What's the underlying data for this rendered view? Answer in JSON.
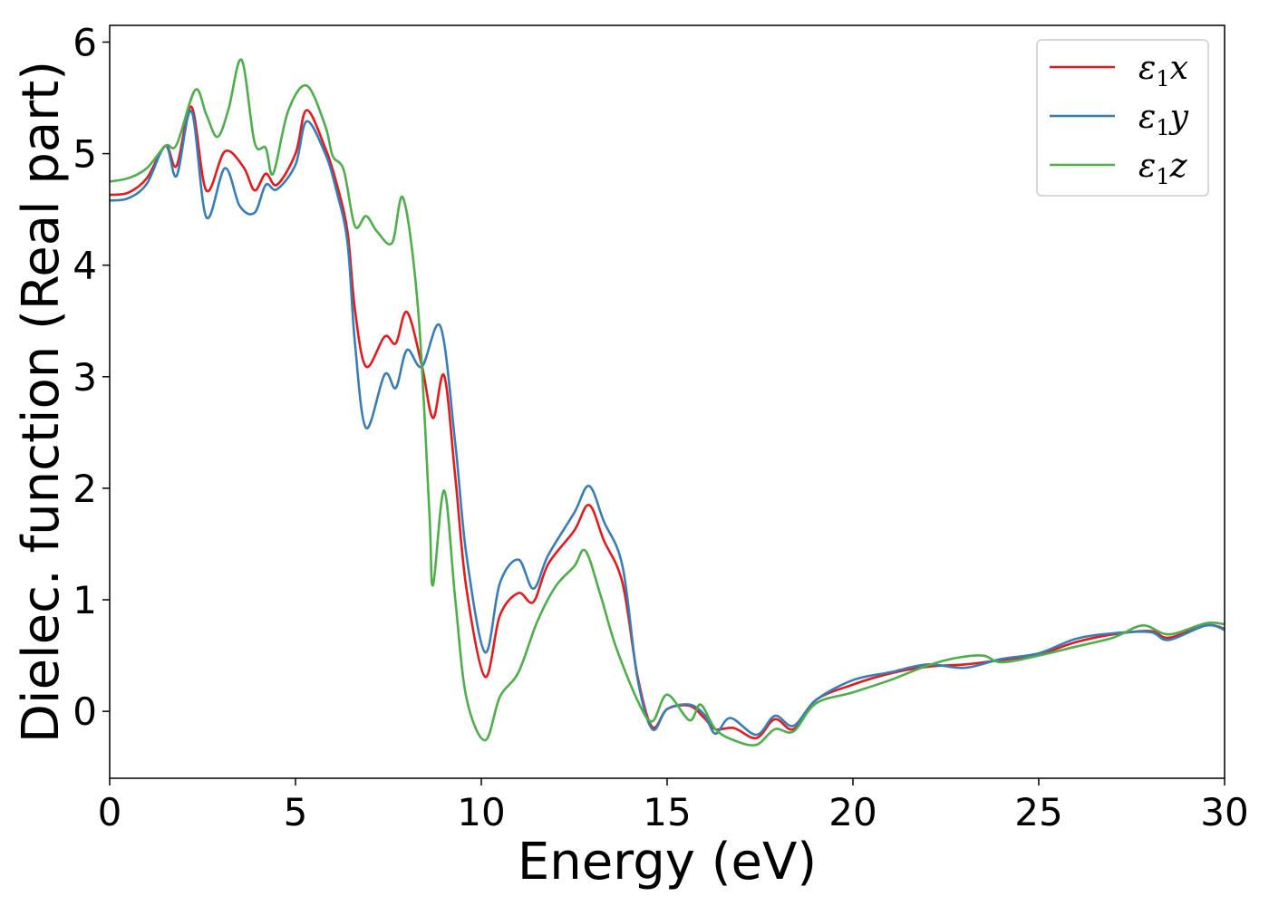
{
  "chart_data": {
    "type": "line",
    "title": "",
    "xlabel": "Energy (eV)",
    "ylabel": "Dielec. function (Real part)",
    "xlim": [
      0,
      30
    ],
    "ylim": [
      -0.6,
      6.15
    ],
    "xticks": [
      0,
      5,
      10,
      15,
      20,
      25,
      30
    ],
    "yticks": [
      0,
      1,
      2,
      3,
      4,
      5,
      6
    ],
    "grid": false,
    "legend_position": "top-right",
    "series": [
      {
        "name": "ε₁x",
        "legend": {
          "symbol": "ε",
          "sub": "1",
          "suffix": "x"
        },
        "color": "#e41a1c",
        "points": [
          [
            0,
            4.63
          ],
          [
            0.5,
            4.65
          ],
          [
            1,
            4.78
          ],
          [
            1.5,
            5.07
          ],
          [
            1.8,
            4.89
          ],
          [
            2.2,
            5.42
          ],
          [
            2.6,
            4.67
          ],
          [
            3.1,
            5.02
          ],
          [
            3.6,
            4.88
          ],
          [
            3.9,
            4.67
          ],
          [
            4.2,
            4.82
          ],
          [
            4.5,
            4.72
          ],
          [
            5.0,
            5.0
          ],
          [
            5.3,
            5.39
          ],
          [
            5.8,
            5.05
          ],
          [
            6.1,
            4.74
          ],
          [
            6.4,
            4.3
          ],
          [
            6.6,
            3.6
          ],
          [
            6.9,
            3.09
          ],
          [
            7.4,
            3.36
          ],
          [
            7.7,
            3.3
          ],
          [
            8.0,
            3.58
          ],
          [
            8.4,
            3.1
          ],
          [
            8.7,
            2.63
          ],
          [
            9.0,
            3.01
          ],
          [
            9.3,
            2.1
          ],
          [
            9.6,
            1.1
          ],
          [
            10.1,
            0.31
          ],
          [
            10.5,
            0.86
          ],
          [
            11.0,
            1.06
          ],
          [
            11.4,
            0.98
          ],
          [
            11.8,
            1.32
          ],
          [
            12.5,
            1.62
          ],
          [
            12.9,
            1.85
          ],
          [
            13.3,
            1.53
          ],
          [
            13.8,
            1.15
          ],
          [
            14.2,
            0.32
          ],
          [
            14.6,
            -0.14
          ],
          [
            15.0,
            0.02
          ],
          [
            15.6,
            0.05
          ],
          [
            16.0,
            -0.06
          ],
          [
            16.3,
            -0.16
          ],
          [
            16.8,
            -0.15
          ],
          [
            17.4,
            -0.24
          ],
          [
            17.9,
            -0.07
          ],
          [
            18.4,
            -0.16
          ],
          [
            19.0,
            0.1
          ],
          [
            20.0,
            0.24
          ],
          [
            21.0,
            0.34
          ],
          [
            22.0,
            0.4
          ],
          [
            23.0,
            0.42
          ],
          [
            24.0,
            0.46
          ],
          [
            25.0,
            0.51
          ],
          [
            26.0,
            0.62
          ],
          [
            27.0,
            0.69
          ],
          [
            28.0,
            0.72
          ],
          [
            28.5,
            0.66
          ],
          [
            29.5,
            0.77
          ],
          [
            30,
            0.74
          ]
        ]
      },
      {
        "name": "ε₁y",
        "legend": {
          "symbol": "ε",
          "sub": "1",
          "suffix": "y"
        },
        "color": "#377eb8",
        "points": [
          [
            0,
            4.58
          ],
          [
            0.5,
            4.6
          ],
          [
            1,
            4.73
          ],
          [
            1.5,
            5.07
          ],
          [
            1.8,
            4.8
          ],
          [
            2.2,
            5.38
          ],
          [
            2.6,
            4.43
          ],
          [
            3.1,
            4.87
          ],
          [
            3.5,
            4.53
          ],
          [
            3.9,
            4.47
          ],
          [
            4.2,
            4.72
          ],
          [
            4.5,
            4.68
          ],
          [
            5.0,
            4.9
          ],
          [
            5.3,
            5.29
          ],
          [
            5.8,
            5.0
          ],
          [
            6.1,
            4.67
          ],
          [
            6.4,
            4.2
          ],
          [
            6.6,
            3.3
          ],
          [
            6.9,
            2.54
          ],
          [
            7.4,
            3.02
          ],
          [
            7.7,
            2.9
          ],
          [
            8.0,
            3.24
          ],
          [
            8.4,
            3.09
          ],
          [
            8.9,
            3.45
          ],
          [
            9.3,
            2.4
          ],
          [
            9.6,
            1.4
          ],
          [
            10.1,
            0.53
          ],
          [
            10.5,
            1.15
          ],
          [
            11.0,
            1.36
          ],
          [
            11.4,
            1.1
          ],
          [
            11.8,
            1.4
          ],
          [
            12.5,
            1.78
          ],
          [
            12.9,
            2.02
          ],
          [
            13.3,
            1.7
          ],
          [
            13.8,
            1.3
          ],
          [
            14.2,
            0.3
          ],
          [
            14.6,
            -0.16
          ],
          [
            15.0,
            0.02
          ],
          [
            15.6,
            0.06
          ],
          [
            16.0,
            -0.03
          ],
          [
            16.3,
            -0.2
          ],
          [
            16.7,
            -0.06
          ],
          [
            17.4,
            -0.21
          ],
          [
            17.9,
            -0.04
          ],
          [
            18.4,
            -0.13
          ],
          [
            19.0,
            0.1
          ],
          [
            20.0,
            0.28
          ],
          [
            21.0,
            0.35
          ],
          [
            22.0,
            0.42
          ],
          [
            23.0,
            0.39
          ],
          [
            24.0,
            0.47
          ],
          [
            25.0,
            0.52
          ],
          [
            26.0,
            0.65
          ],
          [
            27.0,
            0.7
          ],
          [
            28.0,
            0.71
          ],
          [
            28.5,
            0.64
          ],
          [
            29.5,
            0.77
          ],
          [
            30,
            0.73
          ]
        ]
      },
      {
        "name": "ε₁z",
        "legend": {
          "symbol": "ε",
          "sub": "1",
          "suffix": "z"
        },
        "color": "#4daf4a",
        "points": [
          [
            0,
            4.75
          ],
          [
            0.5,
            4.78
          ],
          [
            1,
            4.87
          ],
          [
            1.5,
            5.07
          ],
          [
            1.8,
            5.08
          ],
          [
            2.3,
            5.57
          ],
          [
            2.6,
            5.35
          ],
          [
            2.9,
            5.15
          ],
          [
            3.2,
            5.4
          ],
          [
            3.55,
            5.84
          ],
          [
            3.9,
            5.1
          ],
          [
            4.2,
            5.05
          ],
          [
            4.4,
            4.82
          ],
          [
            4.8,
            5.38
          ],
          [
            5.3,
            5.61
          ],
          [
            5.8,
            5.25
          ],
          [
            6.0,
            4.98
          ],
          [
            6.3,
            4.85
          ],
          [
            6.6,
            4.35
          ],
          [
            6.9,
            4.44
          ],
          [
            7.2,
            4.3
          ],
          [
            7.6,
            4.2
          ],
          [
            7.9,
            4.6
          ],
          [
            8.3,
            3.6
          ],
          [
            8.6,
            1.8
          ],
          [
            8.7,
            1.13
          ],
          [
            9.0,
            1.98
          ],
          [
            9.3,
            1.0
          ],
          [
            9.6,
            0.12
          ],
          [
            10.1,
            -0.26
          ],
          [
            10.5,
            0.13
          ],
          [
            11.0,
            0.35
          ],
          [
            11.5,
            0.8
          ],
          [
            12.0,
            1.12
          ],
          [
            12.5,
            1.3
          ],
          [
            12.8,
            1.44
          ],
          [
            13.2,
            1.05
          ],
          [
            13.6,
            0.6
          ],
          [
            14.2,
            0.1
          ],
          [
            14.6,
            -0.09
          ],
          [
            15.0,
            0.15
          ],
          [
            15.6,
            -0.08
          ],
          [
            15.9,
            0.06
          ],
          [
            16.3,
            -0.16
          ],
          [
            16.8,
            -0.26
          ],
          [
            17.4,
            -0.3
          ],
          [
            17.9,
            -0.16
          ],
          [
            18.4,
            -0.18
          ],
          [
            19.0,
            0.07
          ],
          [
            20.0,
            0.17
          ],
          [
            21.0,
            0.28
          ],
          [
            22.0,
            0.41
          ],
          [
            22.8,
            0.48
          ],
          [
            23.5,
            0.5
          ],
          [
            24.0,
            0.44
          ],
          [
            25.0,
            0.5
          ],
          [
            26.0,
            0.58
          ],
          [
            27.0,
            0.66
          ],
          [
            27.8,
            0.77
          ],
          [
            28.5,
            0.69
          ],
          [
            29.5,
            0.79
          ],
          [
            30,
            0.78
          ]
        ]
      }
    ]
  }
}
